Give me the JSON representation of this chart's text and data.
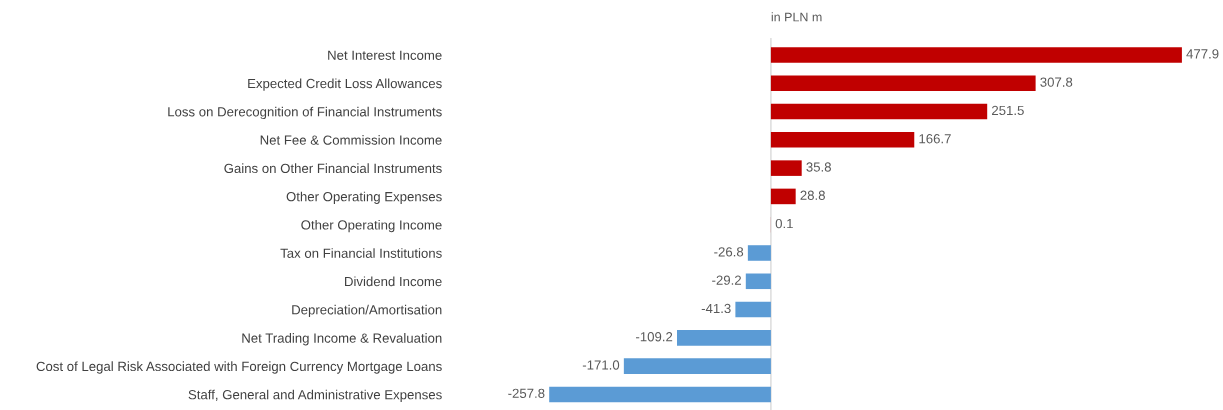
{
  "chart_data": {
    "type": "bar",
    "orientation": "horizontal",
    "categories": [
      "Net Interest Income",
      "Expected Credit Loss Allowances",
      "Loss on Derecognition of Financial Instruments",
      "Net Fee & Commission Income",
      "Gains on Other Financial Instruments",
      "Other Operating Expenses",
      "Other Operating Income",
      "Tax on Financial Institutions",
      "Dividend Income",
      "Depreciation/Amortisation",
      "Net Trading Income & Revaluation",
      "Cost of Legal Risk Associated with Foreign Currency Mortgage Loans",
      "Staff, General and Administrative Expenses"
    ],
    "values": [
      477.9,
      307.8,
      251.5,
      166.7,
      35.8,
      28.8,
      0.1,
      -26.8,
      -29.2,
      -41.3,
      -109.2,
      -171.0,
      -257.8
    ],
    "value_labels": [
      "477.9",
      "307.8",
      "251.5",
      "166.7",
      "35.8",
      "28.8",
      "0.1",
      "-26.8",
      "-29.2",
      "-41.3",
      "-109.2",
      "-171.0",
      "-257.8"
    ],
    "colors": [
      "#c00000",
      "#c00000",
      "#c00000",
      "#c00000",
      "#c00000",
      "#c00000",
      "#c00000",
      "#5b9bd5",
      "#5b9bd5",
      "#5b9bd5",
      "#5b9bd5",
      "#5b9bd5",
      "#5b9bd5"
    ],
    "tick_labels": "y",
    "grid": false,
    "annotations": [
      "in PLN m"
    ]
  }
}
